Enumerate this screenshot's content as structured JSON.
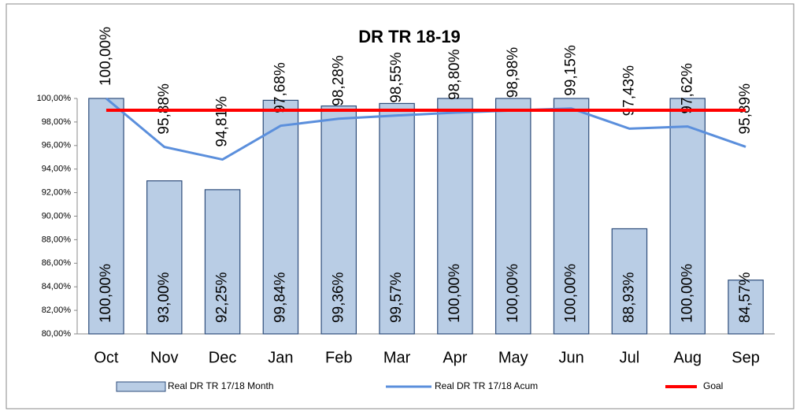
{
  "chart_data": {
    "type": "bar",
    "title": "DR TR 18-19",
    "categories": [
      "Oct",
      "Nov",
      "Dec",
      "Jan",
      "Feb",
      "Mar",
      "Apr",
      "May",
      "Jun",
      "Jul",
      "Aug",
      "Sep"
    ],
    "series": [
      {
        "name": "Real DR TR 17/18 Month",
        "type": "bar",
        "color": "#b9cde5",
        "values": [
          100,
          93,
          92.25,
          99.84,
          99.36,
          99.57,
          100,
          100,
          100,
          88.93,
          100,
          84.57
        ],
        "value_labels": [
          "100,00%",
          "93,00%",
          "92,25%",
          "99,84%",
          "99,36%",
          "99,57%",
          "100,00%",
          "100,00%",
          "100,00%",
          "88,93%",
          "100,00%",
          "84,57%"
        ]
      },
      {
        "name": "Real DR TR 17/18 Acum",
        "type": "line",
        "color": "#5b8fdc",
        "values": [
          100,
          95.88,
          94.81,
          97.68,
          98.28,
          98.55,
          98.8,
          98.98,
          99.15,
          97.43,
          97.62,
          95.89
        ],
        "value_labels": [
          "100,00%",
          "95,88%",
          "94,81%",
          "97,68%",
          "98,28%",
          "98,55%",
          "98,80%",
          "98,98%",
          "99,15%",
          "97,43%",
          "97,62%",
          "95,89%"
        ]
      },
      {
        "name": "Goal",
        "type": "line",
        "color": "#ff0000",
        "values": [
          99,
          99,
          99,
          99,
          99,
          99,
          99,
          99,
          99,
          99,
          99,
          99
        ]
      }
    ],
    "ylim": [
      80,
      100
    ],
    "yticks": [
      {
        "value": 80,
        "label": "80,00%"
      },
      {
        "value": 82,
        "label": "82,00%"
      },
      {
        "value": 84,
        "label": "84,00%"
      },
      {
        "value": 86,
        "label": "86,00%"
      },
      {
        "value": 88,
        "label": "88,00%"
      },
      {
        "value": 90,
        "label": "90,00%"
      },
      {
        "value": 92,
        "label": "92,00%"
      },
      {
        "value": 94,
        "label": "94,00%"
      },
      {
        "value": 96,
        "label": "96,00%"
      },
      {
        "value": 98,
        "label": "98,00%"
      },
      {
        "value": 100,
        "label": "100,00%"
      }
    ],
    "legend": "bottom",
    "grid": false
  }
}
